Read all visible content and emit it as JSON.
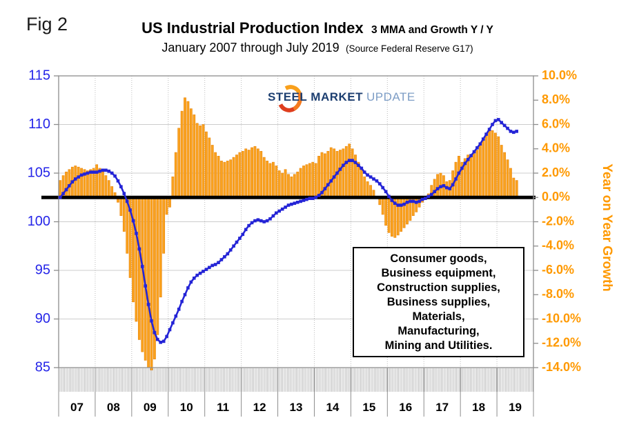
{
  "fig_label": "Fig 2",
  "title": "US Industrial Production Index",
  "title_suffix": "3 MMA and Growth Y / Y",
  "subtitle": "January 2007 through July 2019",
  "subtitle_source": "(Source Federal Reserve G17)",
  "logo": {
    "steel": "STEEL",
    "market": "MARKET",
    "update": "UPDATE"
  },
  "annotation_box": {
    "lines": [
      "Consumer goods,",
      "Business equipment,",
      "Construction supplies,",
      "Business supplies,",
      "Materials,",
      "Manufacturing,",
      "Mining and Utilities."
    ]
  },
  "colors": {
    "blue_label": "#2525E8",
    "line": "#2424D6",
    "orange_label": "#FF9900",
    "bar_fill": "#FAA21E",
    "bar_stroke": "#E8860D",
    "grid": "#CCCCCC",
    "grid_dotted": "#BBBBBB",
    "axis": "#8C8C8C",
    "zero_line": "#000000"
  },
  "chart_data": {
    "type": "combo",
    "frequency": "monthly",
    "x_start": "2007-01",
    "x_end": "2019-07",
    "x_year_labels": [
      "07",
      "08",
      "09",
      "10",
      "11",
      "12",
      "13",
      "14",
      "15",
      "16",
      "17",
      "18",
      "19"
    ],
    "grid": true,
    "left_axis": {
      "min": 85,
      "max": 115,
      "ticks": [
        115,
        110,
        105,
        100,
        95,
        90,
        85
      ]
    },
    "right_axis": {
      "min": -14,
      "max": 10,
      "title": "Year on Year Growth",
      "tick_labels": [
        "10.0%",
        "8.0%",
        "6.0%",
        "4.0%",
        "2.0%",
        "0.0%",
        "-2.0%",
        "-4.0%",
        "-6.0%",
        "-8.0%",
        "-10.0%",
        "-12.0%",
        "-14.0%"
      ]
    },
    "zero_line_value": 0,
    "series": [
      {
        "name": "US Industrial Production Index 3 MMA",
        "type": "line",
        "axis": "left",
        "values": [
          102.5,
          102.9,
          103.3,
          103.7,
          104.1,
          104.4,
          104.6,
          104.8,
          104.9,
          105.0,
          105.1,
          105.1,
          105.1,
          105.2,
          105.3,
          105.3,
          105.2,
          105.0,
          104.7,
          104.2,
          103.6,
          102.9,
          102.1,
          101.2,
          100.1,
          98.8,
          97.2,
          95.4,
          93.4,
          91.5,
          89.8,
          88.6,
          87.9,
          87.6,
          87.7,
          88.2,
          88.9,
          89.6,
          90.3,
          91.0,
          91.8,
          92.5,
          93.2,
          93.8,
          94.2,
          94.5,
          94.7,
          94.9,
          95.1,
          95.3,
          95.5,
          95.6,
          95.8,
          96.1,
          96.4,
          96.7,
          97.1,
          97.5,
          97.9,
          98.3,
          98.7,
          99.2,
          99.6,
          99.9,
          100.1,
          100.2,
          100.1,
          100.0,
          100.1,
          100.3,
          100.6,
          100.9,
          101.1,
          101.3,
          101.5,
          101.7,
          101.8,
          101.9,
          102.0,
          102.1,
          102.2,
          102.3,
          102.4,
          102.4,
          102.5,
          102.7,
          103.0,
          103.4,
          103.8,
          104.2,
          104.6,
          105.0,
          105.4,
          105.8,
          106.1,
          106.3,
          106.3,
          106.1,
          105.8,
          105.5,
          105.1,
          104.8,
          104.6,
          104.4,
          104.2,
          103.9,
          103.5,
          103.1,
          102.6,
          102.2,
          101.9,
          101.7,
          101.7,
          101.8,
          102.0,
          102.1,
          102.1,
          102.0,
          102.1,
          102.3,
          102.4,
          102.6,
          102.8,
          103.1,
          103.4,
          103.6,
          103.7,
          103.5,
          103.4,
          103.8,
          104.4,
          105.0,
          105.5,
          106.0,
          106.4,
          106.8,
          107.2,
          107.6,
          108.0,
          108.5,
          109.0,
          109.5,
          110.0,
          110.4,
          110.5,
          110.2,
          109.9,
          109.6,
          109.3,
          109.2,
          109.3
        ]
      },
      {
        "name": "Growth Y / Y (%)",
        "type": "bar",
        "axis": "right",
        "values": [
          1.4,
          1.8,
          2.1,
          2.3,
          2.5,
          2.6,
          2.5,
          2.4,
          2.3,
          2.2,
          2.3,
          2.4,
          2.7,
          2.4,
          2.1,
          1.8,
          1.4,
          0.9,
          0.4,
          -0.4,
          -1.5,
          -2.8,
          -4.6,
          -6.6,
          -8.6,
          -10.2,
          -11.7,
          -12.7,
          -13.4,
          -14.0,
          -14.2,
          -13.3,
          -11.3,
          -8.2,
          -4.6,
          -1.4,
          -0.8,
          1.7,
          3.7,
          5.7,
          7.1,
          8.2,
          7.9,
          7.3,
          6.8,
          6.1,
          5.9,
          6.0,
          5.4,
          4.9,
          4.3,
          3.7,
          3.4,
          3.0,
          2.9,
          3.0,
          3.1,
          3.3,
          3.5,
          3.7,
          3.8,
          4.0,
          3.9,
          4.1,
          4.2,
          4.0,
          3.8,
          3.3,
          3.0,
          2.8,
          2.9,
          2.6,
          2.2,
          2.0,
          2.3,
          1.9,
          1.7,
          1.9,
          2.1,
          2.4,
          2.6,
          2.7,
          2.8,
          2.9,
          2.8,
          3.4,
          3.7,
          3.6,
          3.8,
          4.1,
          4.0,
          3.8,
          3.9,
          4.0,
          4.2,
          4.4,
          4.0,
          3.5,
          2.9,
          2.3,
          1.7,
          1.3,
          1.0,
          0.6,
          0.1,
          -0.6,
          -1.4,
          -2.3,
          -2.9,
          -3.2,
          -3.3,
          -3.1,
          -2.8,
          -2.5,
          -2.2,
          -1.9,
          -1.5,
          -1.2,
          -0.8,
          -0.4,
          0.1,
          0.3,
          1.0,
          1.5,
          1.9,
          2.0,
          1.8,
          1.3,
          1.4,
          2.2,
          2.9,
          3.4,
          2.9,
          3.2,
          3.5,
          3.4,
          3.6,
          3.9,
          4.3,
          4.7,
          5.2,
          5.6,
          5.5,
          5.3,
          5.0,
          4.3,
          3.7,
          3.1,
          2.4,
          1.6,
          1.4
        ]
      }
    ]
  }
}
